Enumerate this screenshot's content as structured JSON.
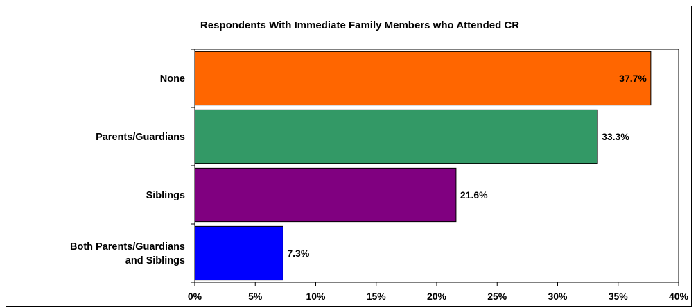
{
  "chart_data": {
    "type": "bar",
    "orientation": "horizontal",
    "title": "Respondents With Immediate Family Members who Attended CR",
    "categories": [
      "None",
      "Parents/Guardians",
      "Siblings",
      "Both Parents/Guardians and Siblings"
    ],
    "category_lines": [
      [
        "None"
      ],
      [
        "Parents/Guardians"
      ],
      [
        "Siblings"
      ],
      [
        "Both Parents/Guardians",
        "and Siblings"
      ]
    ],
    "values": [
      37.7,
      33.3,
      21.6,
      7.3
    ],
    "data_labels": [
      "37.7%",
      "33.3%",
      "21.6%",
      "7.3%"
    ],
    "colors": [
      "#ff6600",
      "#339966",
      "#800080",
      "#0000ff"
    ],
    "xlim": [
      0,
      40
    ],
    "xticks": [
      0,
      5,
      10,
      15,
      20,
      25,
      30,
      35,
      40
    ],
    "xtick_labels": [
      "0%",
      "5%",
      "10%",
      "15%",
      "20%",
      "25%",
      "30%",
      "35%",
      "40%"
    ],
    "xlabel": "",
    "ylabel": "",
    "grid": false,
    "legend": "none"
  }
}
